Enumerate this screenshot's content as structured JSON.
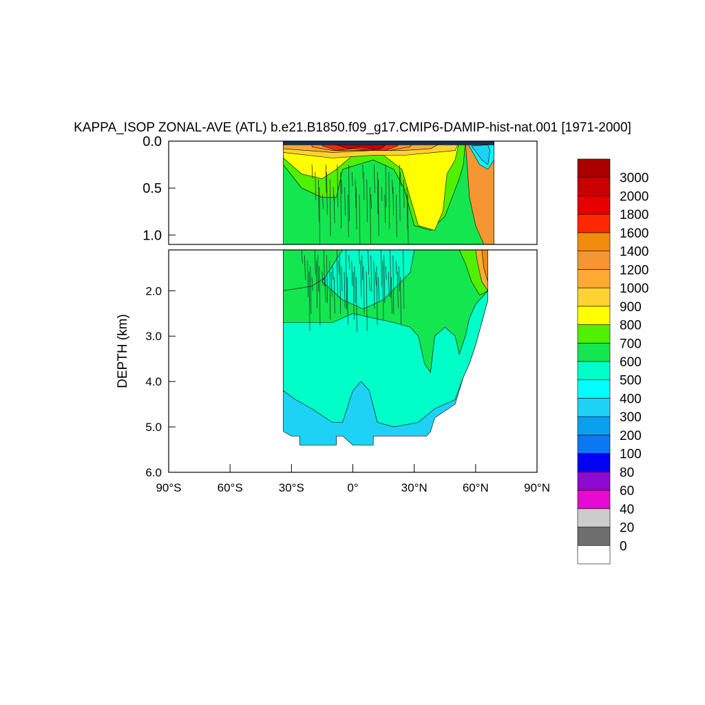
{
  "chart_data": {
    "type": "contour",
    "title": "KAPPA_ISOP ZONAL-AVE (ATL) b.e21.B1850.f09_g17.CMIP6-DAMIP-hist-nat.001 [1971-2000]",
    "ylabel": "DEPTH (km)",
    "xlabel": "",
    "xlim": [
      -90,
      90
    ],
    "ylim_top_panel": [
      0.0,
      1.1
    ],
    "ylim_bottom_panel": [
      1.1,
      6.0
    ],
    "x_ticks": [
      {
        "value": -90,
        "label": "90°S"
      },
      {
        "value": -60,
        "label": "60°S"
      },
      {
        "value": -30,
        "label": "30°S"
      },
      {
        "value": 0,
        "label": "0°"
      },
      {
        "value": 30,
        "label": "30°N"
      },
      {
        "value": 60,
        "label": "60°N"
      },
      {
        "value": 90,
        "label": "90°N"
      }
    ],
    "y_ticks_top": [
      {
        "value": 0.0,
        "label": "0.0"
      },
      {
        "value": 0.5,
        "label": "0.5"
      },
      {
        "value": 1.0,
        "label": "1.0"
      }
    ],
    "y_ticks_bottom": [
      {
        "value": 2.0,
        "label": "2.0"
      },
      {
        "value": 3.0,
        "label": "3.0"
      },
      {
        "value": 4.0,
        "label": "4.0"
      },
      {
        "value": 5.0,
        "label": "5.0"
      },
      {
        "value": 6.0,
        "label": "6.0"
      }
    ],
    "colorbar": {
      "levels": [
        "0",
        "20",
        "40",
        "60",
        "80",
        "100",
        "200",
        "300",
        "400",
        "500",
        "600",
        "700",
        "800",
        "900",
        "1000",
        "1200",
        "1400",
        "1600",
        "1800",
        "2000",
        "3000"
      ],
      "colors": [
        "#ffffff",
        "#6e6e6e",
        "#cccccc",
        "#e60ad2",
        "#8c0ad2",
        "#0000f5",
        "#0a78f5",
        "#0aa0f0",
        "#1ed2f5",
        "#00ffff",
        "#00ffc8",
        "#14e650",
        "#50f000",
        "#ffff00",
        "#ffd232",
        "#ffaa32",
        "#f59632",
        "#f08c0a",
        "#ff2800",
        "#e60000",
        "#c80000",
        "#aa0000"
      ]
    },
    "data_coverage": {
      "lat_range": [
        -34,
        69
      ],
      "max_depth_km": 5.4
    },
    "field_regions": [
      {
        "depth_range_km": [
          0.0,
          0.05
        ],
        "lat_range": [
          -34,
          69
        ],
        "value_class": "0-20"
      },
      {
        "depth_range_km": [
          0.05,
          0.25
        ],
        "lat_range": [
          -10,
          20
        ],
        "value_class": "1600-3000"
      },
      {
        "depth_range_km": [
          0.1,
          0.3
        ],
        "lat_range": [
          -34,
          40
        ],
        "value_class": "900-1400"
      },
      {
        "depth_range_km": [
          0.3,
          1.1
        ],
        "lat_range": [
          -34,
          -12
        ],
        "value_class": "700-800"
      },
      {
        "depth_range_km": [
          0.2,
          0.9
        ],
        "lat_range": [
          25,
          45
        ],
        "value_class": "800-900"
      },
      {
        "depth_range_km": [
          0.2,
          2.0
        ],
        "lat_range": [
          55,
          66
        ],
        "value_class": "1000-1400"
      },
      {
        "depth_range_km": [
          0.2,
          0.6
        ],
        "lat_range": [
          58,
          66
        ],
        "value_class": "300-500"
      },
      {
        "depth_range_km": [
          0.2,
          2.7
        ],
        "lat_range": [
          -34,
          55
        ],
        "value_class": "600-700"
      },
      {
        "depth_range_km": [
          2.7,
          5.0
        ],
        "lat_range": [
          -34,
          50
        ],
        "value_class": "500-600"
      },
      {
        "depth_range_km": [
          4.5,
          5.4
        ],
        "lat_range": [
          -34,
          40
        ],
        "value_class": "400-500"
      }
    ]
  }
}
